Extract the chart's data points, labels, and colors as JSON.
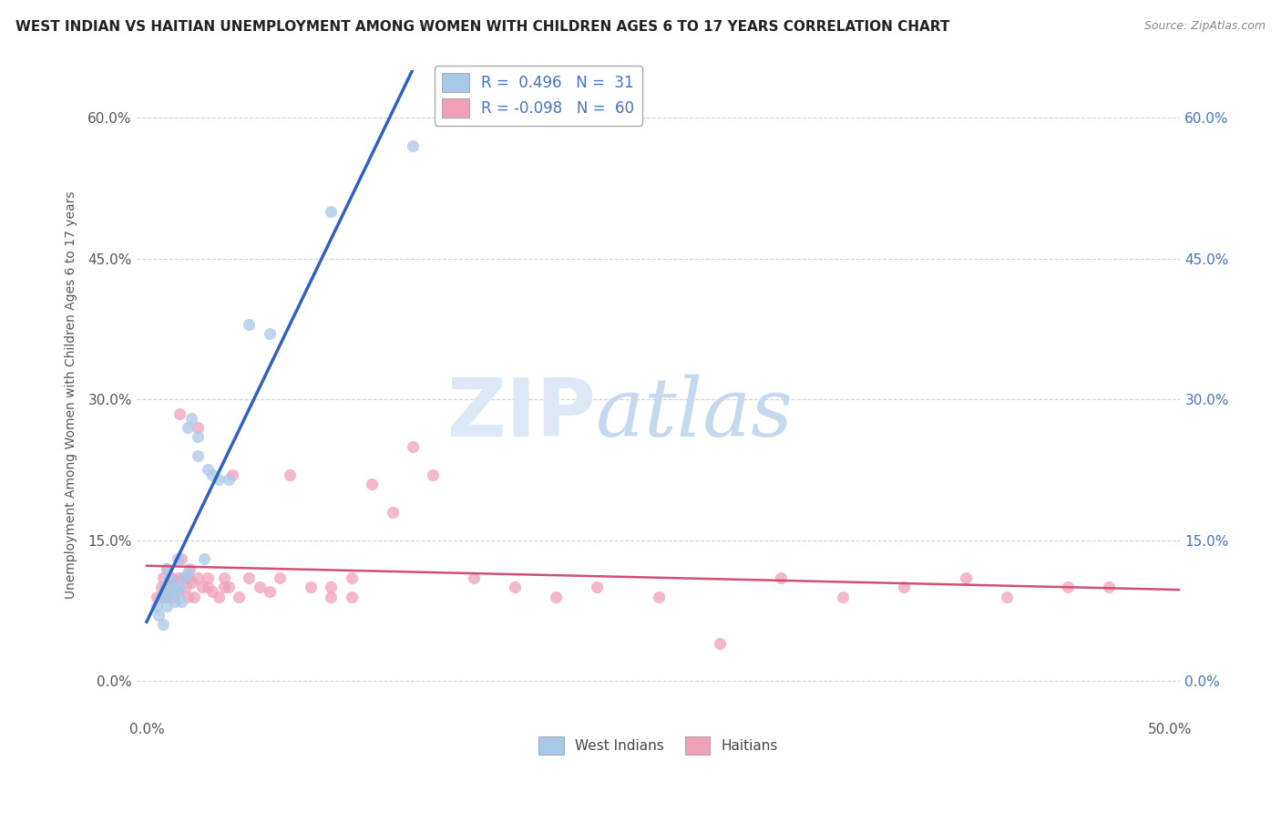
{
  "title": "WEST INDIAN VS HAITIAN UNEMPLOYMENT AMONG WOMEN WITH CHILDREN AGES 6 TO 17 YEARS CORRELATION CHART",
  "source": "Source: ZipAtlas.com",
  "ylabel": "Unemployment Among Women with Children Ages 6 to 17 years",
  "xlim": [
    -0.005,
    0.505
  ],
  "ylim": [
    -0.04,
    0.65
  ],
  "yticks": [
    0.0,
    0.15,
    0.3,
    0.45,
    0.6
  ],
  "ytick_labels": [
    "0.0%",
    "15.0%",
    "30.0%",
    "45.0%",
    "60.0%"
  ],
  "xtick_vals": [
    0.0,
    0.5
  ],
  "xtick_labels": [
    "0.0%",
    "50.0%"
  ],
  "west_indian_color": "#a8c8e8",
  "haitian_color": "#f0a0b8",
  "line_wi_color": "#3060c0",
  "line_h_color": "#d05070",
  "line_wi_dash_color": "#b0c0d8",
  "wi_x": [
    0.005,
    0.006,
    0.007,
    0.008,
    0.009,
    0.01,
    0.01,
    0.01,
    0.011,
    0.012,
    0.013,
    0.014,
    0.015,
    0.015,
    0.016,
    0.017,
    0.018,
    0.02,
    0.02,
    0.022,
    0.025,
    0.025,
    0.028,
    0.03,
    0.032,
    0.035,
    0.04,
    0.05,
    0.06,
    0.09,
    0.13
  ],
  "wi_y": [
    0.08,
    0.07,
    0.09,
    0.06,
    0.1,
    0.09,
    0.12,
    0.08,
    0.11,
    0.095,
    0.1,
    0.085,
    0.095,
    0.13,
    0.1,
    0.085,
    0.11,
    0.115,
    0.27,
    0.28,
    0.24,
    0.26,
    0.13,
    0.225,
    0.22,
    0.215,
    0.215,
    0.38,
    0.37,
    0.5,
    0.57
  ],
  "h_x": [
    0.005,
    0.007,
    0.008,
    0.009,
    0.01,
    0.01,
    0.011,
    0.012,
    0.013,
    0.014,
    0.015,
    0.015,
    0.016,
    0.017,
    0.018,
    0.019,
    0.02,
    0.02,
    0.021,
    0.022,
    0.023,
    0.025,
    0.025,
    0.027,
    0.03,
    0.03,
    0.032,
    0.035,
    0.038,
    0.04,
    0.042,
    0.045,
    0.05,
    0.055,
    0.06,
    0.065,
    0.07,
    0.08,
    0.09,
    0.1,
    0.11,
    0.12,
    0.14,
    0.16,
    0.18,
    0.2,
    0.22,
    0.25,
    0.28,
    0.31,
    0.34,
    0.37,
    0.4,
    0.42,
    0.45,
    0.47,
    0.038,
    0.09,
    0.1,
    0.13
  ],
  "h_y": [
    0.09,
    0.1,
    0.11,
    0.09,
    0.1,
    0.12,
    0.1,
    0.11,
    0.09,
    0.1,
    0.11,
    0.095,
    0.285,
    0.13,
    0.11,
    0.1,
    0.09,
    0.11,
    0.12,
    0.105,
    0.09,
    0.11,
    0.27,
    0.1,
    0.1,
    0.11,
    0.095,
    0.09,
    0.11,
    0.1,
    0.22,
    0.09,
    0.11,
    0.1,
    0.095,
    0.11,
    0.22,
    0.1,
    0.09,
    0.11,
    0.21,
    0.18,
    0.22,
    0.11,
    0.1,
    0.09,
    0.1,
    0.09,
    0.04,
    0.11,
    0.09,
    0.1,
    0.11,
    0.09,
    0.1,
    0.1,
    0.1,
    0.1,
    0.09,
    0.25
  ]
}
